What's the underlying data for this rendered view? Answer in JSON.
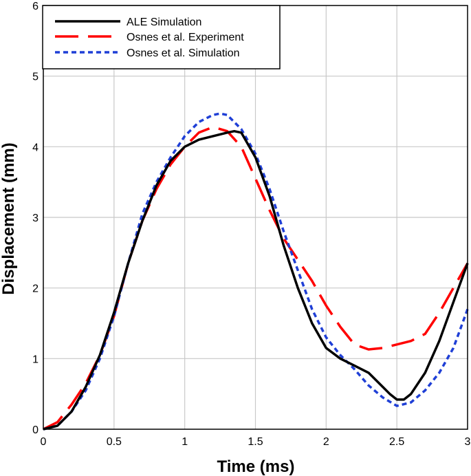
{
  "chart_data": {
    "type": "line",
    "title": "",
    "xlabel": "Time (ms)",
    "ylabel": "Displacement (mm)",
    "xlim": [
      0,
      3
    ],
    "ylim": [
      0,
      6
    ],
    "grid": true,
    "legend_position": "top-left",
    "x_ticks": [
      0,
      0.5,
      1,
      1.5,
      2,
      2.5,
      3
    ],
    "x_tick_labels": [
      "0",
      "0.5",
      "1",
      "1.5",
      "2",
      "2.5",
      "3"
    ],
    "y_ticks": [
      0,
      1,
      2,
      3,
      4,
      5,
      6
    ],
    "y_tick_labels": [
      "0",
      "1",
      "2",
      "3",
      "4",
      "5",
      "6"
    ],
    "series": [
      {
        "name": "ALE Simulation",
        "color": "#000000",
        "style": "solid",
        "x": [
          0,
          0.1,
          0.2,
          0.3,
          0.4,
          0.5,
          0.6,
          0.7,
          0.8,
          0.9,
          1.0,
          1.1,
          1.2,
          1.3,
          1.35,
          1.4,
          1.5,
          1.6,
          1.7,
          1.8,
          1.9,
          2.0,
          2.1,
          2.2,
          2.3,
          2.4,
          2.45,
          2.5,
          2.55,
          2.6,
          2.7,
          2.8,
          2.9,
          3.0
        ],
        "y": [
          0,
          0.05,
          0.25,
          0.6,
          1.05,
          1.65,
          2.35,
          2.95,
          3.45,
          3.8,
          4.0,
          4.1,
          4.15,
          4.2,
          4.22,
          4.2,
          3.85,
          3.3,
          2.6,
          2.0,
          1.5,
          1.15,
          1.0,
          0.9,
          0.8,
          0.6,
          0.5,
          0.42,
          0.42,
          0.5,
          0.8,
          1.25,
          1.8,
          2.35
        ]
      },
      {
        "name": "Osnes et al. Experiment",
        "color": "#ff0000",
        "style": "dashed",
        "x": [
          0,
          0.1,
          0.2,
          0.3,
          0.4,
          0.5,
          0.6,
          0.7,
          0.8,
          0.9,
          1.0,
          1.1,
          1.2,
          1.3,
          1.4,
          1.5,
          1.6,
          1.7,
          1.8,
          1.9,
          2.0,
          2.1,
          2.2,
          2.3,
          2.4,
          2.5,
          2.6,
          2.7,
          2.8,
          2.9,
          3.0
        ],
        "y": [
          0,
          0.1,
          0.35,
          0.65,
          1.05,
          1.6,
          2.35,
          2.95,
          3.4,
          3.75,
          4.0,
          4.2,
          4.28,
          4.22,
          4.0,
          3.55,
          3.1,
          2.7,
          2.4,
          2.1,
          1.75,
          1.45,
          1.2,
          1.13,
          1.15,
          1.2,
          1.25,
          1.35,
          1.65,
          2.0,
          2.35
        ]
      },
      {
        "name": "Osnes et al. Simulation",
        "color": "#1f3fd6",
        "style": "dotted",
        "x": [
          0,
          0.1,
          0.2,
          0.3,
          0.4,
          0.5,
          0.6,
          0.7,
          0.8,
          0.9,
          1.0,
          1.1,
          1.2,
          1.25,
          1.3,
          1.4,
          1.5,
          1.6,
          1.7,
          1.8,
          1.9,
          2.0,
          2.1,
          2.2,
          2.3,
          2.4,
          2.5,
          2.6,
          2.7,
          2.8,
          2.9,
          3.0
        ],
        "y": [
          0,
          0.05,
          0.25,
          0.55,
          1.0,
          1.6,
          2.35,
          3.05,
          3.5,
          3.85,
          4.15,
          4.35,
          4.45,
          4.47,
          4.45,
          4.25,
          3.9,
          3.4,
          2.8,
          2.25,
          1.7,
          1.3,
          1.05,
          0.85,
          0.62,
          0.45,
          0.33,
          0.38,
          0.55,
          0.8,
          1.15,
          1.7
        ]
      }
    ]
  }
}
